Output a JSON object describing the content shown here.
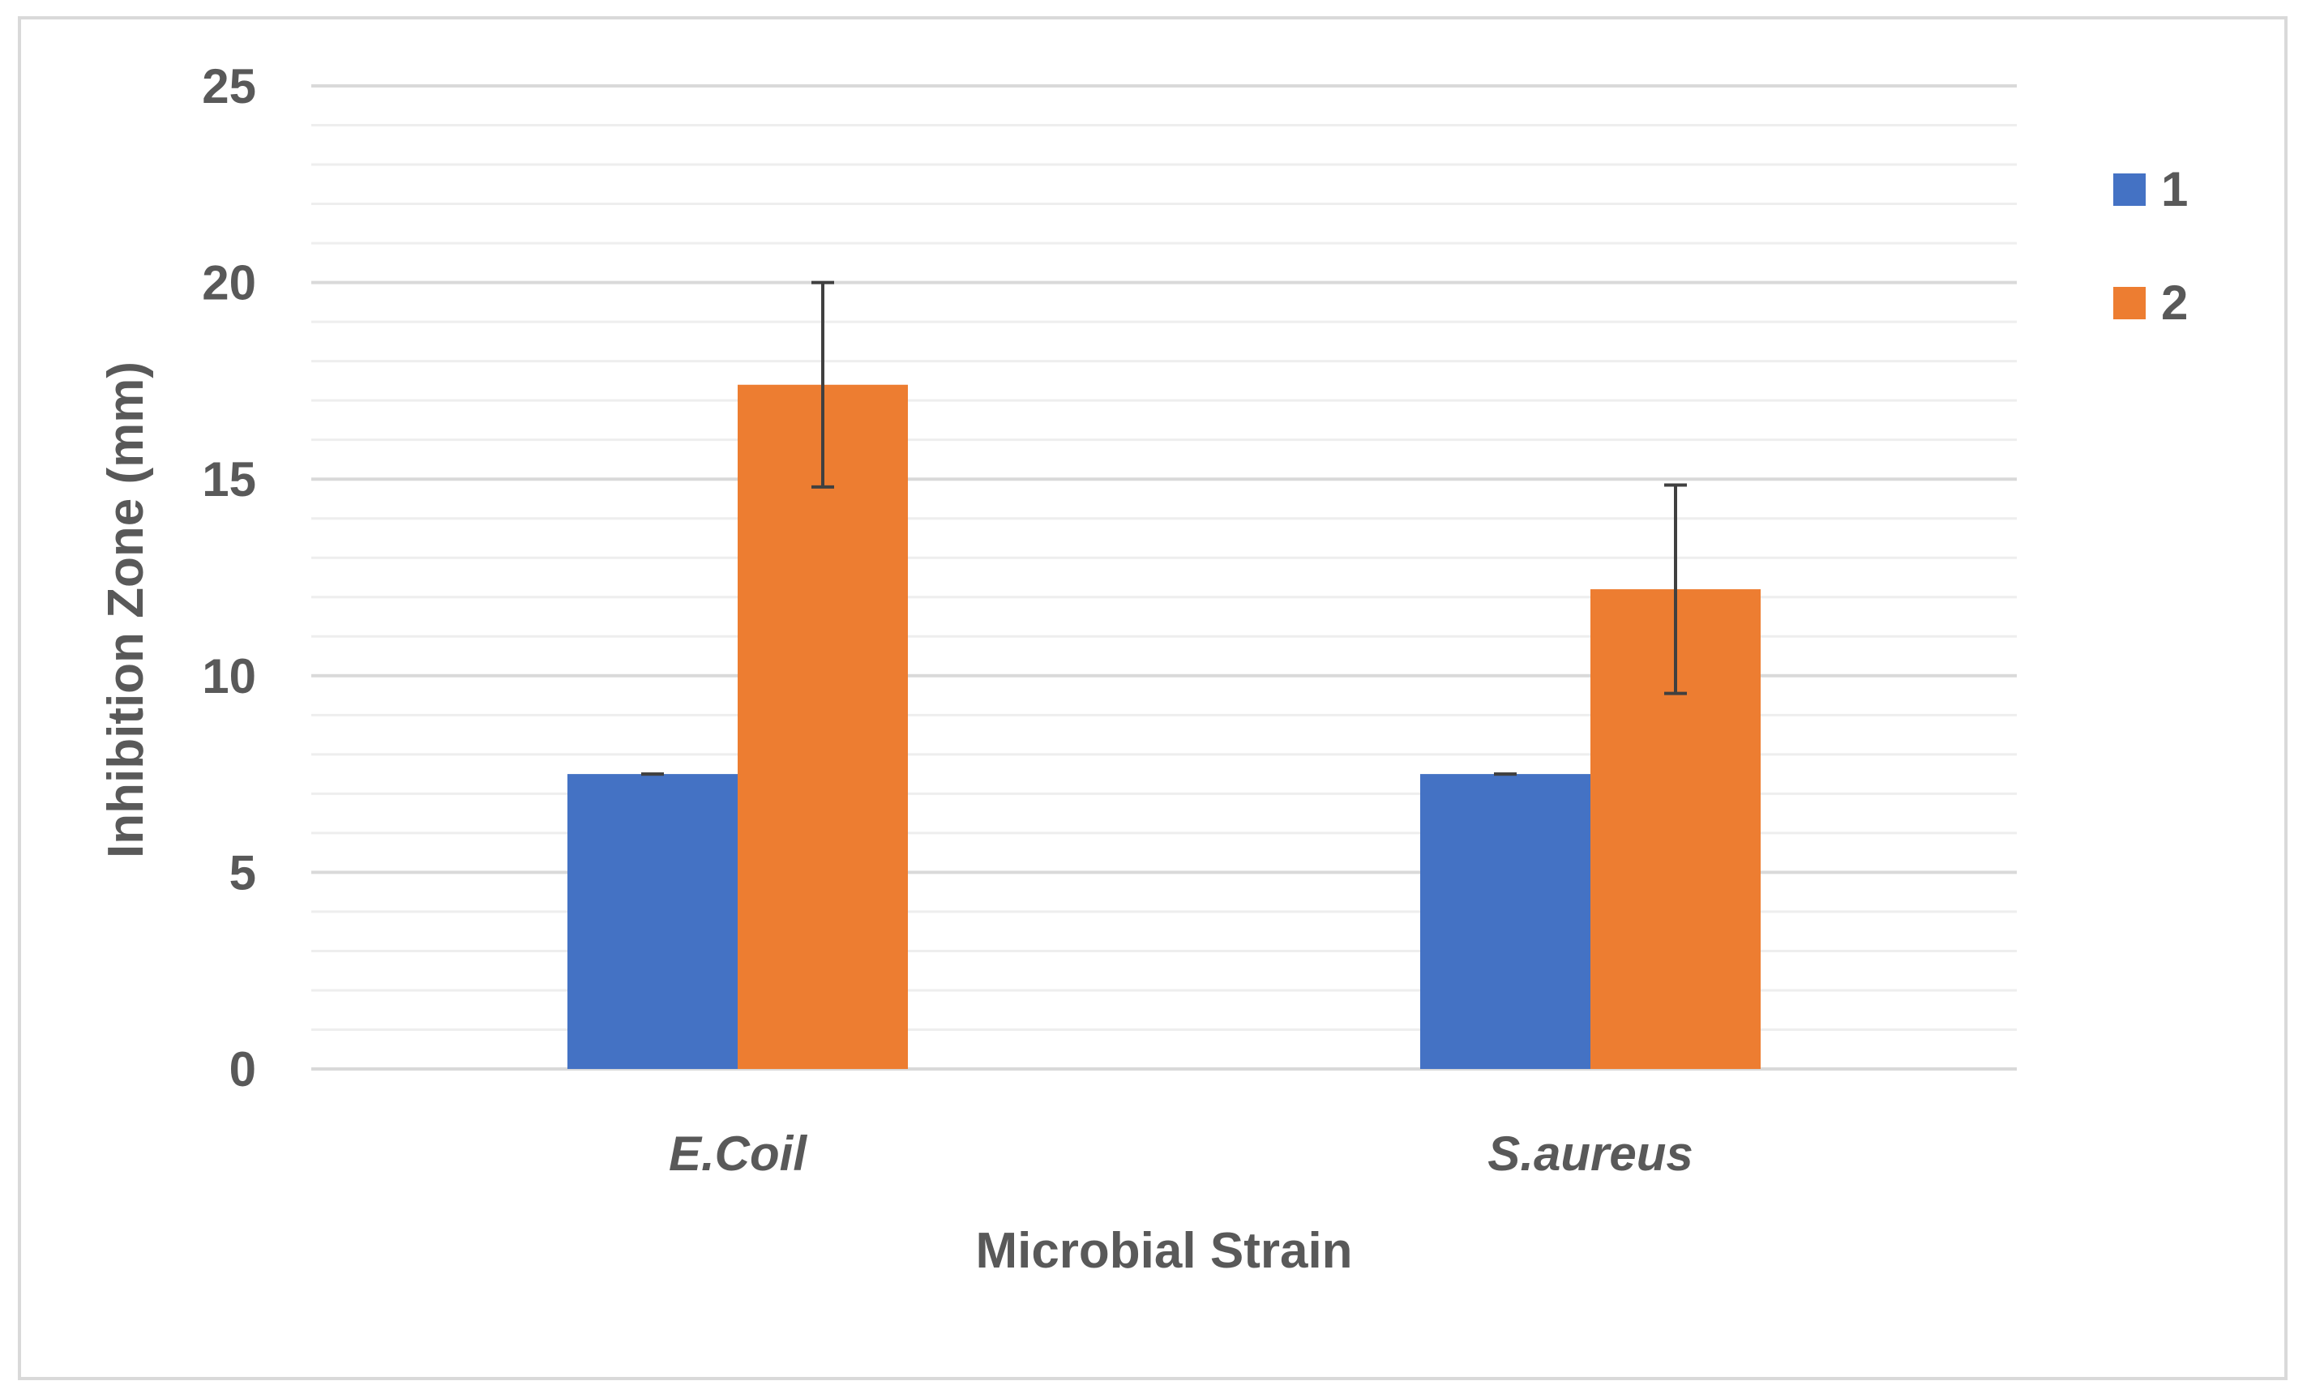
{
  "chart_data": {
    "type": "bar",
    "title": "",
    "xlabel": "Microbial Strain",
    "ylabel": "Inhibition Zone (mm)",
    "categories": [
      "E.Coil",
      "S.aureus"
    ],
    "categories_italic": true,
    "ylim": [
      0,
      25
    ],
    "yticks": [
      "0",
      "5",
      "10",
      "15",
      "20",
      "25"
    ],
    "ytick_values": [
      0,
      5,
      10,
      15,
      20,
      25
    ],
    "minor_grid_step": 1,
    "grid": true,
    "legend_position": "right",
    "series": [
      {
        "name": "1",
        "color": "#4472c4",
        "values": [
          7.5,
          7.5
        ],
        "errors": [
          0.0,
          0.0
        ]
      },
      {
        "name": "2",
        "color": "#ed7d31",
        "values": [
          17.4,
          12.2
        ],
        "errors": [
          2.6,
          2.65
        ]
      }
    ],
    "colors": {
      "grid_major": "#d9d9d9",
      "grid_minor": "#eeeeee",
      "text": "#595959",
      "error_bar": "#404040"
    }
  }
}
